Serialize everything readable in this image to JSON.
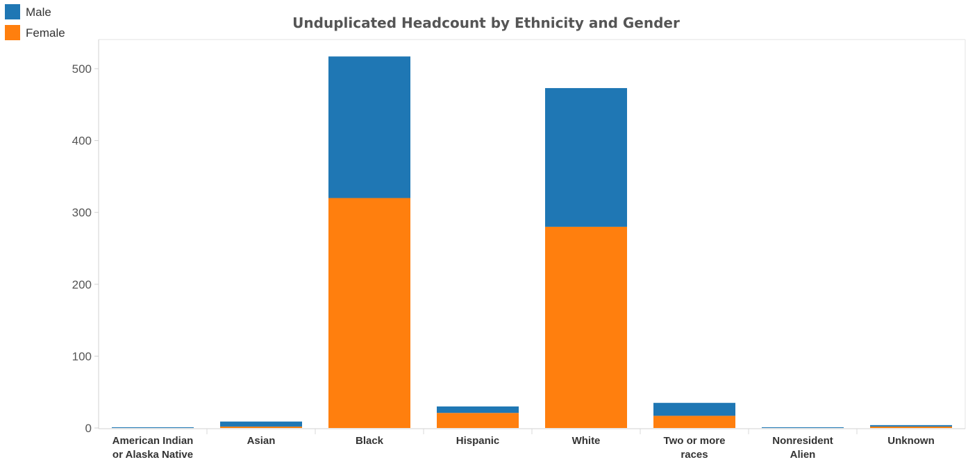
{
  "chart_data": {
    "type": "bar",
    "stacked": true,
    "title": "Unduplicated Headcount by Ethnicity and Gender",
    "xlabel": "",
    "ylabel": "",
    "categories": [
      [
        "American Indian",
        "or Alaska Native"
      ],
      [
        "Asian"
      ],
      [
        "Black"
      ],
      [
        "Hispanic"
      ],
      [
        "White"
      ],
      [
        "Two or more",
        "races"
      ],
      [
        "Nonresident",
        "Alien"
      ],
      [
        "Unknown"
      ]
    ],
    "series": [
      {
        "name": "Female",
        "color": "#ff7f0e",
        "values": [
          0,
          2,
          320,
          21,
          280,
          17,
          0,
          2
        ]
      },
      {
        "name": "Male",
        "color": "#1f77b4",
        "values": [
          1,
          7,
          197,
          9,
          193,
          18,
          1,
          2
        ]
      }
    ],
    "legend_order": [
      "Male",
      "Female"
    ],
    "legend_position": "top-left",
    "ylim": [
      -5,
      540
    ],
    "yticks": [
      0,
      100,
      200,
      300,
      400,
      500
    ],
    "grid": false
  }
}
